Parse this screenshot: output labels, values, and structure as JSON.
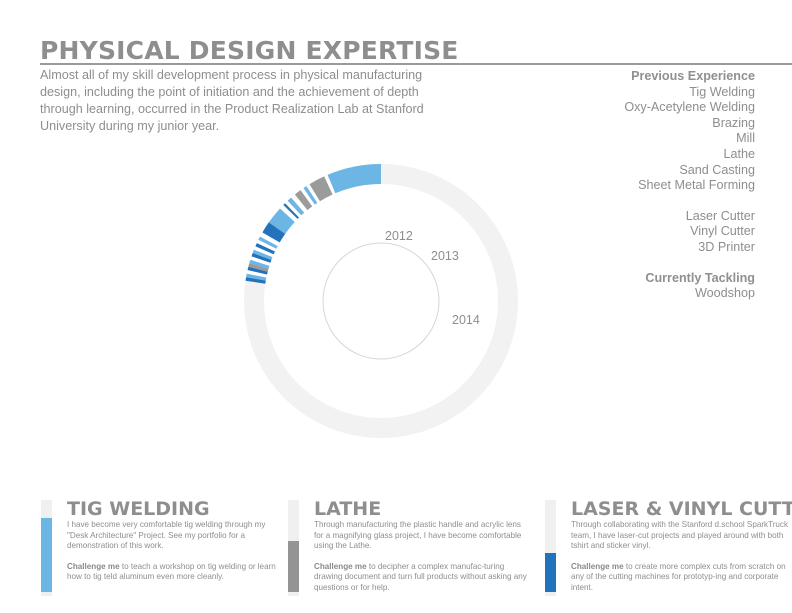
{
  "header": {
    "title": "PHYSICAL DESIGN EXPERTISE",
    "intro": "Almost all of my skill development process in physical manufacturing design, including the point of initiation and the achievement of depth through learning, occurred in the Product Realization Lab at Stanford University during my junior year."
  },
  "sidebar": {
    "previous_heading": "Previous Experience",
    "previous_items": [
      "Tig Welding",
      "Oxy-Acetylene Welding",
      "Brazing",
      "Mill",
      "Lathe",
      "Sand Casting",
      "Sheet Metal Forming"
    ],
    "tools_items": [
      "Laser Cutter",
      "Vinyl Cutter",
      "3D Printer"
    ],
    "current_heading": "Currently Tackling",
    "current_items": [
      "Woodshop"
    ]
  },
  "chart_data": {
    "type": "donut",
    "year_labels": [
      "2012",
      "2013",
      "2014"
    ],
    "colors": {
      "light_blue": "#6cb6e6",
      "dark_blue": "#2273bb",
      "gray": "#9b9b9b",
      "empty": "#f2f2f2"
    }
  },
  "cards": [
    {
      "title": "TIG WELDING",
      "body": "I have become very comfortable tig welding through my \"Desk Architecture\" Project. See my portfolio for a demonstration of this work.",
      "challenge_lead": "Challenge me",
      "challenge_text": " to teach a workshop on tig welding or learn how to tig teld aluminum even more cleanly.",
      "level": 0.8,
      "color": "#6cb6e6"
    },
    {
      "title": "LATHE",
      "body": "Through manufacturing the plastic handle and acrylic lens for a magnifying glass project, I have become comfortable using the Lathe.",
      "challenge_lead": "Challenge me",
      "challenge_text": " to decipher a complex manufac-turing drawing document and turn full products without asking any questions or for help.",
      "level": 0.55,
      "color": "#949494"
    },
    {
      "title": "LASER & VINYL CUTTER",
      "body": "Through collaborating with the Stanford d.school SparkTruck team, I have laser-cut projects and played around with both tshirt and sticker vinyl.",
      "challenge_lead": "Challenge me",
      "challenge_text": " to create more complex cuts from scratch on any of the cutting machines for prototyp-ing and corporate intent.",
      "level": 0.42,
      "color": "#2273bb"
    }
  ]
}
